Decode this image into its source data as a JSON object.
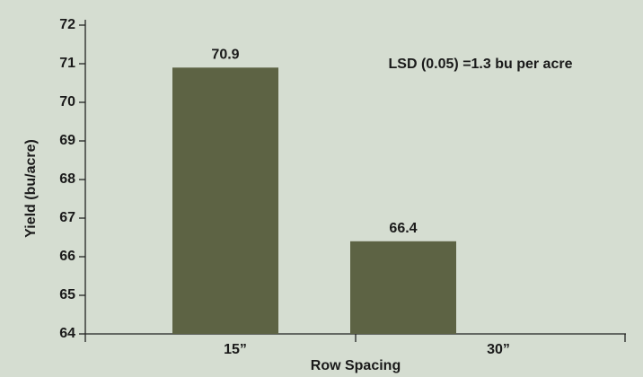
{
  "chart_data": {
    "type": "bar",
    "categories": [
      "15”",
      "30”"
    ],
    "values": [
      70.9,
      66.4
    ],
    "color": "#5d6344",
    "x_label": "Row Spacing",
    "y_label": "Yield (bu/acre)",
    "annotation": "LSD (0.05) =1.3 bu per acre",
    "ylim": [
      64,
      72
    ],
    "yticks": [
      64,
      65,
      66,
      67,
      68,
      69,
      70,
      71,
      72
    ]
  }
}
